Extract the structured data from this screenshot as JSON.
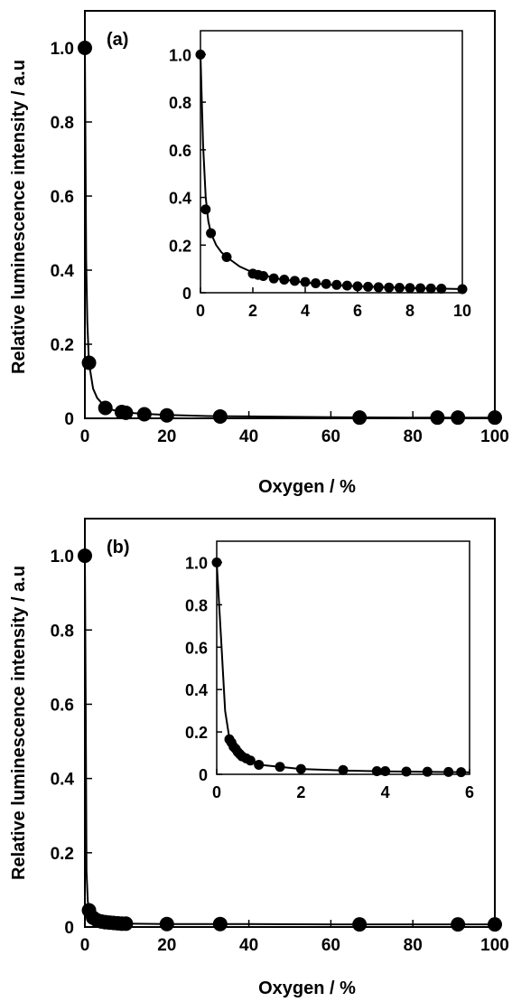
{
  "chart_data": [
    {
      "type": "scatter",
      "title": "",
      "panel_label": "(a)",
      "xlabel": "Oxygen / %",
      "ylabel": "Relative luminescence intensity / a.u",
      "xlim": [
        0,
        100
      ],
      "ylim": [
        0,
        1.1
      ],
      "xticks": [
        0,
        20,
        40,
        60,
        80,
        100
      ],
      "yticks": [
        0,
        0.2,
        0.4,
        0.6,
        0.8,
        1.0
      ],
      "ytick_labels": [
        "0",
        "0.2",
        "0.4",
        "0.6",
        "0.8",
        "1.0"
      ],
      "grid": false,
      "marker": "filled-circle",
      "line": "smooth-fit",
      "series": [
        {
          "x": [
            0,
            1,
            5,
            9,
            10,
            14.5,
            20,
            33,
            67,
            86,
            91,
            100
          ],
          "y": [
            1.0,
            0.15,
            0.028,
            0.017,
            0.015,
            0.011,
            0.008,
            0.005,
            0.002,
            0.002,
            0.002,
            0.002
          ]
        }
      ],
      "fit_curve": {
        "x": [
          0,
          0.3,
          0.6,
          1,
          2,
          3,
          5,
          7,
          9,
          12,
          15,
          20,
          30,
          40,
          60,
          80,
          100
        ],
        "y": [
          1.0,
          0.43,
          0.26,
          0.15,
          0.08,
          0.055,
          0.03,
          0.022,
          0.018,
          0.014,
          0.012,
          0.009,
          0.006,
          0.005,
          0.003,
          0.002,
          0.002
        ]
      },
      "inset": {
        "type": "scatter",
        "xlim": [
          0,
          10
        ],
        "ylim": [
          0,
          1.1
        ],
        "xticks": [
          0,
          2,
          4,
          6,
          8,
          10
        ],
        "yticks": [
          0,
          0.2,
          0.4,
          0.6,
          0.8,
          1.0
        ],
        "ytick_labels": [
          "0",
          "0.2",
          "0.4",
          "0.6",
          "0.8",
          "1.0"
        ],
        "series": [
          {
            "x": [
              0,
              0.2,
              0.4,
              1,
              2,
              2.2,
              2.4,
              2.8,
              3.2,
              3.6,
              4,
              4.4,
              4.8,
              5.2,
              5.6,
              6,
              6.4,
              6.8,
              7.2,
              7.6,
              8,
              8.4,
              8.8,
              9.2,
              10
            ],
            "y": [
              1.0,
              0.35,
              0.25,
              0.15,
              0.08,
              0.075,
              0.07,
              0.06,
              0.055,
              0.05,
              0.045,
              0.04,
              0.037,
              0.033,
              0.03,
              0.027,
              0.025,
              0.023,
              0.022,
              0.021,
              0.02,
              0.019,
              0.018,
              0.017,
              0.015
            ]
          }
        ],
        "fit_curve": {
          "x": [
            0,
            0.1,
            0.2,
            0.3,
            0.4,
            0.6,
            0.8,
            1,
            1.5,
            2,
            3,
            4,
            5,
            6,
            8,
            10
          ],
          "y": [
            1.0,
            0.62,
            0.4,
            0.3,
            0.25,
            0.2,
            0.17,
            0.15,
            0.11,
            0.085,
            0.058,
            0.043,
            0.033,
            0.027,
            0.02,
            0.015
          ]
        }
      }
    },
    {
      "type": "scatter",
      "title": "",
      "panel_label": "(b)",
      "xlabel": "Oxygen / %",
      "ylabel": "Relative luminescence intensity / a.u",
      "xlim": [
        0,
        100
      ],
      "ylim": [
        0,
        1.1
      ],
      "xticks": [
        0,
        20,
        40,
        60,
        80,
        100
      ],
      "yticks": [
        0,
        0.2,
        0.4,
        0.6,
        0.8,
        1.0
      ],
      "ytick_labels": [
        "0",
        "0.2",
        "0.4",
        "0.6",
        "0.8",
        "1.0"
      ],
      "grid": false,
      "marker": "filled-circle",
      "line": "smooth-fit",
      "series": [
        {
          "x": [
            0,
            1,
            2,
            3,
            4,
            5,
            6,
            7,
            8,
            9,
            10,
            20,
            33,
            67,
            91,
            100
          ],
          "y": [
            1.0,
            0.045,
            0.025,
            0.018,
            0.015,
            0.013,
            0.012,
            0.011,
            0.01,
            0.009,
            0.009,
            0.008,
            0.008,
            0.007,
            0.007,
            0.007
          ]
        }
      ],
      "fit_curve": {
        "x": [
          0,
          0.2,
          0.4,
          0.7,
          1,
          2,
          4,
          6,
          10,
          20,
          40,
          60,
          80,
          100
        ],
        "y": [
          1.0,
          0.6,
          0.15,
          0.07,
          0.045,
          0.025,
          0.015,
          0.012,
          0.009,
          0.008,
          0.008,
          0.007,
          0.007,
          0.007
        ]
      },
      "inset": {
        "type": "scatter",
        "xlim": [
          0,
          6
        ],
        "ylim": [
          0,
          1.1
        ],
        "xticks": [
          0,
          2,
          4,
          6
        ],
        "yticks": [
          0,
          0.2,
          0.4,
          0.6,
          0.8,
          1.0
        ],
        "ytick_labels": [
          "0",
          "0.2",
          "0.4",
          "0.6",
          "0.8",
          "1.0"
        ],
        "series": [
          {
            "x": [
              0,
              0.3,
              0.35,
              0.4,
              0.45,
              0.5,
              0.55,
              0.6,
              0.7,
              0.8,
              1,
              1.5,
              2,
              3,
              3.8,
              4,
              4.5,
              5,
              5.5,
              5.8
            ],
            "y": [
              1.0,
              0.165,
              0.15,
              0.13,
              0.12,
              0.105,
              0.095,
              0.085,
              0.075,
              0.065,
              0.045,
              0.035,
              0.025,
              0.02,
              0.015,
              0.015,
              0.013,
              0.012,
              0.011,
              0.01
            ]
          }
        ],
        "fit_curve": {
          "x": [
            0,
            0.1,
            0.2,
            0.3,
            0.4,
            0.5,
            0.7,
            1,
            1.5,
            2,
            3,
            4,
            5,
            6
          ],
          "y": [
            1.0,
            0.65,
            0.3,
            0.17,
            0.13,
            0.105,
            0.075,
            0.045,
            0.035,
            0.025,
            0.018,
            0.014,
            0.012,
            0.01
          ]
        }
      }
    }
  ]
}
